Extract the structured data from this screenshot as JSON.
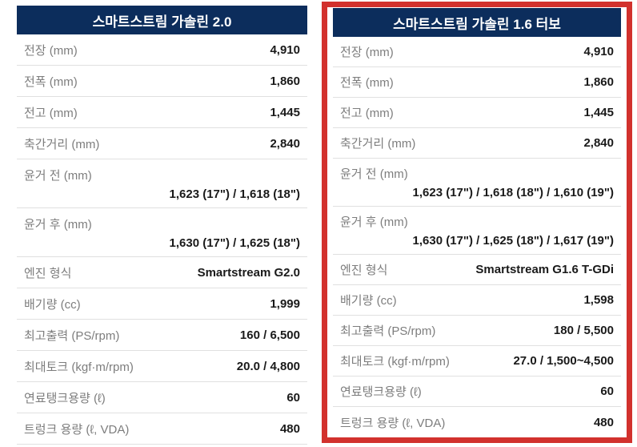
{
  "colors": {
    "page_bg": "#ffffff",
    "header_bg": "#0c2d5c",
    "header_text": "#ffffff",
    "highlight_border": "#d2312d",
    "label_text": "#7d7d7d",
    "value_text": "#1a1a1a",
    "divider": "#e0e0e0"
  },
  "tables": [
    {
      "title": "스마트스트림 가솔린 2.0",
      "highlighted": false,
      "rows": [
        {
          "label": "전장 (mm)",
          "value": "4,910",
          "two_line": false
        },
        {
          "label": "전폭 (mm)",
          "value": "1,860",
          "two_line": false
        },
        {
          "label": "전고 (mm)",
          "value": "1,445",
          "two_line": false
        },
        {
          "label": "축간거리 (mm)",
          "value": "2,840",
          "two_line": false
        },
        {
          "label": "윤거 전 (mm)",
          "value": "1,623 (17\") / 1,618 (18\")",
          "two_line": true
        },
        {
          "label": "윤거 후 (mm)",
          "value": "1,630 (17\") / 1,625 (18\")",
          "two_line": true
        },
        {
          "label": "엔진 형식",
          "value": "Smartstream G2.0",
          "two_line": false
        },
        {
          "label": "배기량 (cc)",
          "value": "1,999",
          "two_line": false
        },
        {
          "label": "최고출력 (PS/rpm)",
          "value": "160 / 6,500",
          "two_line": false
        },
        {
          "label": "최대토크 (kgf·m/rpm)",
          "value": "20.0 / 4,800",
          "two_line": false
        },
        {
          "label": "연료탱크용량 (ℓ)",
          "value": "60",
          "two_line": false
        },
        {
          "label": "트렁크 용량 (ℓ, VDA)",
          "value": "480",
          "two_line": false
        }
      ]
    },
    {
      "title": "스마트스트림 가솔린 1.6 터보",
      "highlighted": true,
      "rows": [
        {
          "label": "전장 (mm)",
          "value": "4,910",
          "two_line": false
        },
        {
          "label": "전폭 (mm)",
          "value": "1,860",
          "two_line": false
        },
        {
          "label": "전고 (mm)",
          "value": "1,445",
          "two_line": false
        },
        {
          "label": "축간거리 (mm)",
          "value": "2,840",
          "two_line": false
        },
        {
          "label": "윤거 전 (mm)",
          "value": "1,623 (17\") / 1,618 (18\") / 1,610 (19\")",
          "two_line": true
        },
        {
          "label": "윤거 후 (mm)",
          "value": "1,630 (17\") / 1,625 (18\") / 1,617 (19\")",
          "two_line": true
        },
        {
          "label": "엔진 형식",
          "value": "Smartstream G1.6 T-GDi",
          "two_line": false
        },
        {
          "label": "배기량 (cc)",
          "value": "1,598",
          "two_line": false
        },
        {
          "label": "최고출력 (PS/rpm)",
          "value": "180 / 5,500",
          "two_line": false
        },
        {
          "label": "최대토크 (kgf·m/rpm)",
          "value": "27.0 / 1,500~4,500",
          "two_line": false
        },
        {
          "label": "연료탱크용량 (ℓ)",
          "value": "60",
          "two_line": false
        },
        {
          "label": "트렁크 용량 (ℓ, VDA)",
          "value": "480",
          "two_line": false
        }
      ]
    }
  ]
}
